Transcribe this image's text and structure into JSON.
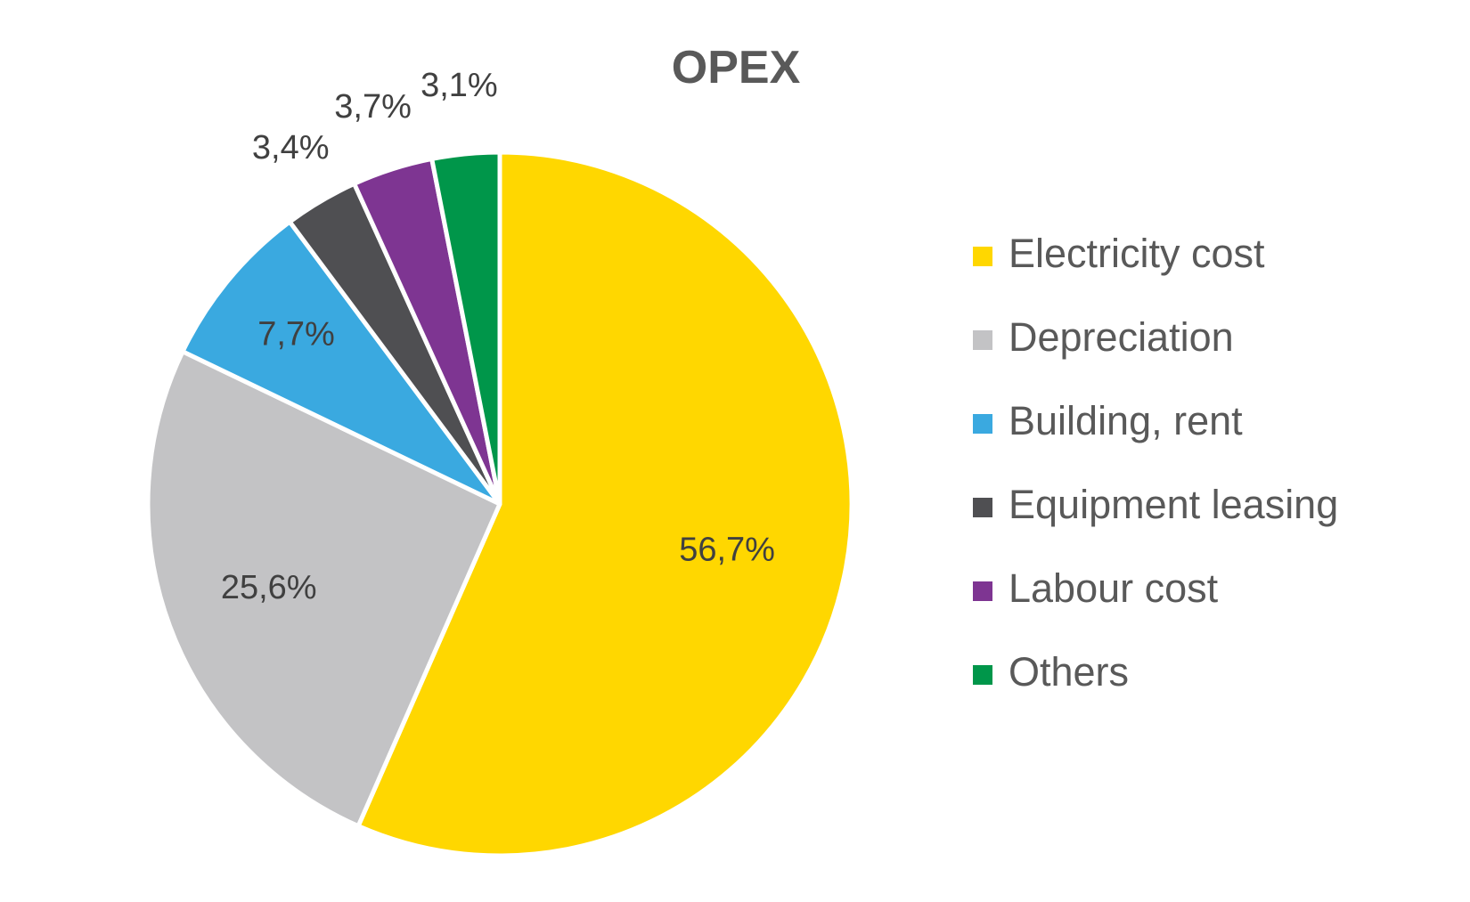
{
  "chart_data": {
    "type": "pie",
    "title": "OPEX",
    "legend_position": "right",
    "slices": [
      {
        "name": "Electricity cost",
        "value": 56.7,
        "label": "56,7%",
        "color": "#FFD700"
      },
      {
        "name": "Depreciation",
        "value": 25.6,
        "label": "25,6%",
        "color": "#C3C3C5"
      },
      {
        "name": "Building, rent",
        "value": 7.7,
        "label": "7,7%",
        "color": "#3AA9E0"
      },
      {
        "name": "Equipment leasing",
        "value": 3.4,
        "label": "3,4%",
        "color": "#4F4F52"
      },
      {
        "name": "Labour cost",
        "value": 3.7,
        "label": "3,7%",
        "color": "#7E3592"
      },
      {
        "name": "Others",
        "value": 3.1,
        "label": "3,1%",
        "color": "#00964A"
      }
    ]
  }
}
